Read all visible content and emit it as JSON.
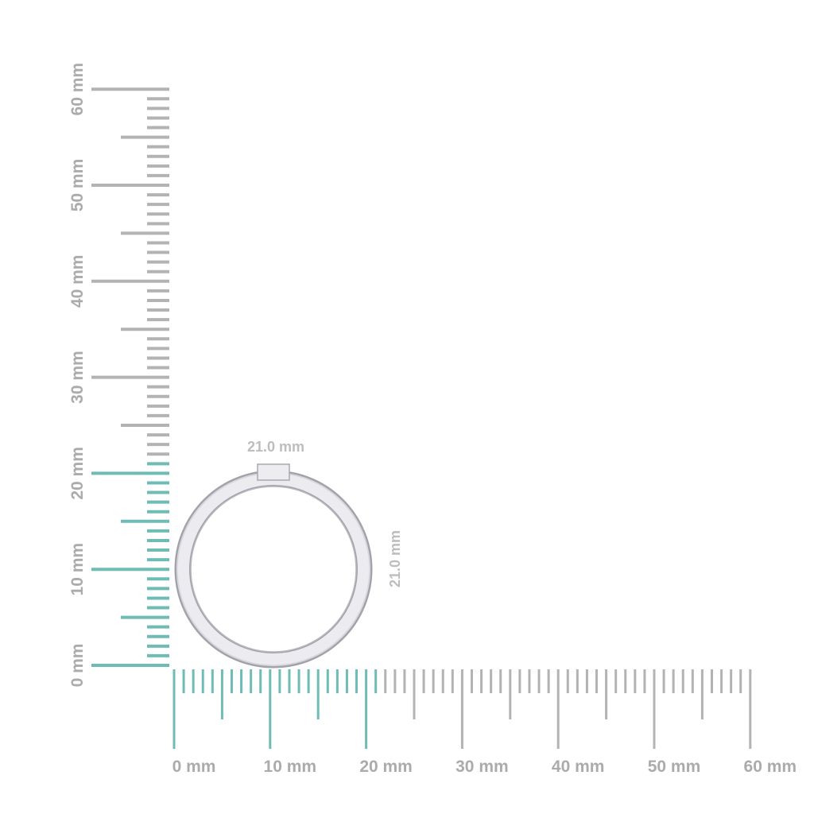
{
  "rulers": {
    "unit": "mm",
    "max": 60,
    "highlight_to": 21,
    "labels": [
      "0 mm",
      "10 mm",
      "20 mm",
      "30 mm",
      "40 mm",
      "50 mm",
      "60 mm"
    ],
    "colors": {
      "tick": "#b3b3b3",
      "highlight": "#6fbcb6",
      "label": "#ababab"
    }
  },
  "ring": {
    "width_label": "21.0 mm",
    "height_label": "21.0 mm",
    "colors": {
      "metal": "#e6e6ea",
      "edge": "#9c9ca4"
    }
  }
}
